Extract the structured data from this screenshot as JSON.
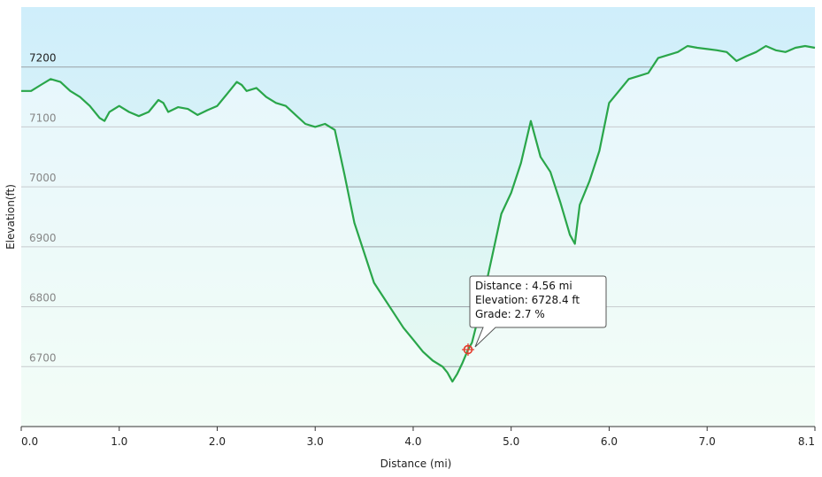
{
  "chart_data": {
    "type": "area",
    "xlabel": "Distance  (mi)",
    "ylabel": "Elevation(ft)",
    "xlim": [
      0,
      8.1
    ],
    "ylim": [
      6600,
      7300
    ],
    "x_ticks": [
      "0.0",
      "1.0",
      "2.0",
      "3.0",
      "4.0",
      "5.0",
      "6.0",
      "7.0",
      "8.1"
    ],
    "y_ticks": [
      "6700",
      "6800",
      "6900",
      "7000",
      "7100",
      "7200"
    ],
    "grid": "horizontal",
    "series": [
      {
        "color": "#2aa64a",
        "x": [
          0.0,
          0.1,
          0.2,
          0.3,
          0.4,
          0.5,
          0.6,
          0.7,
          0.8,
          0.85,
          0.9,
          1.0,
          1.1,
          1.2,
          1.3,
          1.4,
          1.45,
          1.5,
          1.6,
          1.7,
          1.8,
          1.9,
          2.0,
          2.1,
          2.2,
          2.25,
          2.3,
          2.4,
          2.5,
          2.6,
          2.7,
          2.8,
          2.9,
          3.0,
          3.1,
          3.2,
          3.3,
          3.4,
          3.5,
          3.6,
          3.7,
          3.8,
          3.9,
          4.0,
          4.1,
          4.2,
          4.3,
          4.35,
          4.4,
          4.45,
          4.5,
          4.56,
          4.6,
          4.7,
          4.8,
          4.9,
          5.0,
          5.1,
          5.2,
          5.3,
          5.4,
          5.5,
          5.6,
          5.65,
          5.7,
          5.8,
          5.9,
          6.0,
          6.1,
          6.2,
          6.3,
          6.4,
          6.5,
          6.6,
          6.7,
          6.8,
          6.9,
          7.0,
          7.1,
          7.2,
          7.3,
          7.4,
          7.5,
          7.6,
          7.7,
          7.8,
          7.9,
          8.0,
          8.1
        ],
        "y": [
          7160,
          7160,
          7170,
          7180,
          7175,
          7160,
          7150,
          7135,
          7115,
          7110,
          7125,
          7135,
          7125,
          7118,
          7125,
          7145,
          7140,
          7125,
          7133,
          7130,
          7120,
          7128,
          7135,
          7155,
          7175,
          7170,
          7160,
          7165,
          7150,
          7140,
          7135,
          7120,
          7105,
          7100,
          7105,
          7095,
          7020,
          6940,
          6890,
          6840,
          6815,
          6790,
          6765,
          6745,
          6725,
          6710,
          6700,
          6690,
          6675,
          6688,
          6705,
          6728.4,
          6740,
          6805,
          6880,
          6955,
          6990,
          7040,
          7110,
          7050,
          7025,
          6975,
          6920,
          6905,
          6970,
          7010,
          7060,
          7140,
          7160,
          7180,
          7185,
          7190,
          7215,
          7220,
          7225,
          7235,
          7232,
          7230,
          7228,
          7225,
          7210,
          7218,
          7225,
          7235,
          7228,
          7225,
          7232,
          7235,
          7232
        ]
      }
    ]
  },
  "tooltip": {
    "distance_line": "Distance  : 4.56 mi",
    "elevation_line": "Elevation: 6728.4 ft",
    "grade_line": "Grade: 2.7 %",
    "x": 4.56,
    "y": 6728.4
  },
  "colors": {
    "line": "#2aa64a",
    "background_top": "#cfeefb",
    "background_bottom": "#e9fbf0",
    "area_fill": "#ffffff",
    "marker": "#e53b2c"
  }
}
